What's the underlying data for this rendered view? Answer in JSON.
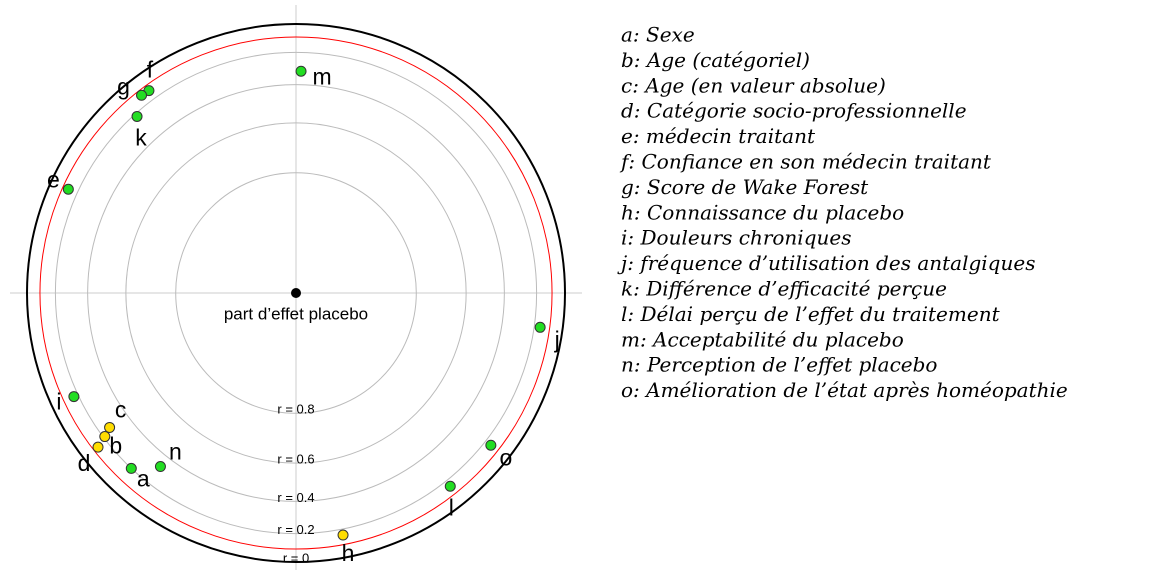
{
  "chart_data": {
    "type": "focused-polar",
    "center_label": "part d’effet placebo",
    "rings": [
      {
        "value": 0.8,
        "label": "r = 0.8"
      },
      {
        "value": 0.6,
        "label": "r = 0.6"
      },
      {
        "value": 0.4,
        "label": "r = 0.4"
      },
      {
        "value": 0.2,
        "label": "r = 0.2"
      },
      {
        "value": 0,
        "label": "r = 0"
      }
    ],
    "threshold": 0.094,
    "threshold_color": "#ff0000",
    "positive_color": "#22dd22",
    "negative_color": "#ffdd00",
    "points": [
      {
        "label": "a",
        "r": 0.2,
        "angle": -136.8
      },
      {
        "label": "b",
        "r": -0.21,
        "angle": -126.9
      },
      {
        "label": "c",
        "r": -0.27,
        "angle": -125.8
      },
      {
        "label": "d",
        "r": -0.13,
        "angle": -127.9
      },
      {
        "label": "e",
        "r": 0.135,
        "angle": -65.5
      },
      {
        "label": "f",
        "r": 0.135,
        "angle": -36
      },
      {
        "label": "g",
        "r": 0.13,
        "angle": -38
      },
      {
        "label": "h",
        "r": -0.16,
        "angle": 169
      },
      {
        "label": "i",
        "r": 0.17,
        "angle": -115
      },
      {
        "label": "j",
        "r": 0.16,
        "angle": 98
      },
      {
        "label": "k",
        "r": 0.22,
        "angle": -42
      },
      {
        "label": "l",
        "r": 0.155,
        "angle": 141.4
      },
      {
        "label": "m",
        "r": 0.32,
        "angle": 1.3
      },
      {
        "label": "n",
        "r": 0.33,
        "angle": -142
      },
      {
        "label": "o",
        "r": 0.155,
        "angle": 128
      }
    ],
    "legend": [
      "a: Sexe",
      "b: Age (catégoriel)",
      "c: Age (en valeur absolue)",
      "d: Catégorie socio-professionnelle",
      "e: médecin traitant",
      "f: Confiance en son médecin traitant",
      "g: Score de Wake Forest",
      "h: Connaissance du placebo",
      "i: Douleurs chroniques",
      "j: fréquence d’utilisation des antalgiques",
      "k: Différence d’efficacité perçue",
      "l: Délai perçu de l’effet du traitement",
      "m: Acceptabilité du placebo",
      "n: Perception de l’effet placebo",
      "o: Amélioration de l’état après homéopathie"
    ]
  }
}
